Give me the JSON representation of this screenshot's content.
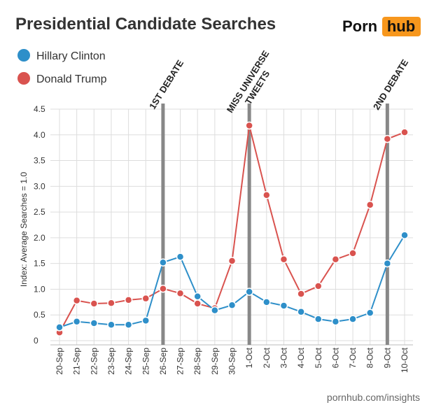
{
  "chart_data": {
    "type": "line",
    "title": "Presidential Candidate Searches",
    "logo": {
      "left": "Porn",
      "right": "hub"
    },
    "y_label": "Index: Average Searches = 1.0",
    "source": "pornhub.com/insights",
    "categories": [
      "20-Sep",
      "21-Sep",
      "22-Sep",
      "23-Sep",
      "24-Sep",
      "25-Sep",
      "26-Sep",
      "27-Sep",
      "28-Sep",
      "29-Sep",
      "30-Sep",
      "1-Oct",
      "2-Oct",
      "3-Oct",
      "4-Oct",
      "5-Oct",
      "6-Oct",
      "7-Oct",
      "8-Oct",
      "9-Oct",
      "10-Oct"
    ],
    "series": [
      {
        "name": "Hillary Clinton",
        "color": "#2e8fc9",
        "values": [
          0.26,
          0.37,
          0.34,
          0.31,
          0.31,
          0.39,
          1.52,
          1.63,
          0.86,
          0.59,
          0.69,
          0.95,
          0.75,
          0.68,
          0.56,
          0.42,
          0.37,
          0.42,
          0.54,
          1.5,
          2.05
        ]
      },
      {
        "name": "Donald Trump",
        "color": "#d9534f",
        "values": [
          0.16,
          0.78,
          0.72,
          0.73,
          0.79,
          0.82,
          1.01,
          0.92,
          0.72,
          0.63,
          1.55,
          4.18,
          2.83,
          1.58,
          0.91,
          1.06,
          1.58,
          1.7,
          2.64,
          3.92,
          4.05
        ]
      }
    ],
    "events": [
      {
        "category": "26-Sep",
        "label_lines": [
          "1ST DEBATE"
        ]
      },
      {
        "category": "1-Oct",
        "label_lines": [
          "MISS UNIVERSE",
          "TWEETS"
        ]
      },
      {
        "category": "9-Oct",
        "label_lines": [
          "2ND DEBATE"
        ]
      }
    ],
    "ylim": [
      0,
      4.5
    ],
    "yticks": [
      0,
      {
        "value": 0.5,
        "label": "0.5"
      },
      {
        "value": 1,
        "label": "1.0"
      },
      1.5,
      {
        "value": 2,
        "label": "2.0"
      },
      2.5,
      {
        "value": 3,
        "label": "3.0"
      },
      3.5,
      {
        "value": 4,
        "label": "4.0"
      },
      4.5
    ],
    "grid": true
  }
}
